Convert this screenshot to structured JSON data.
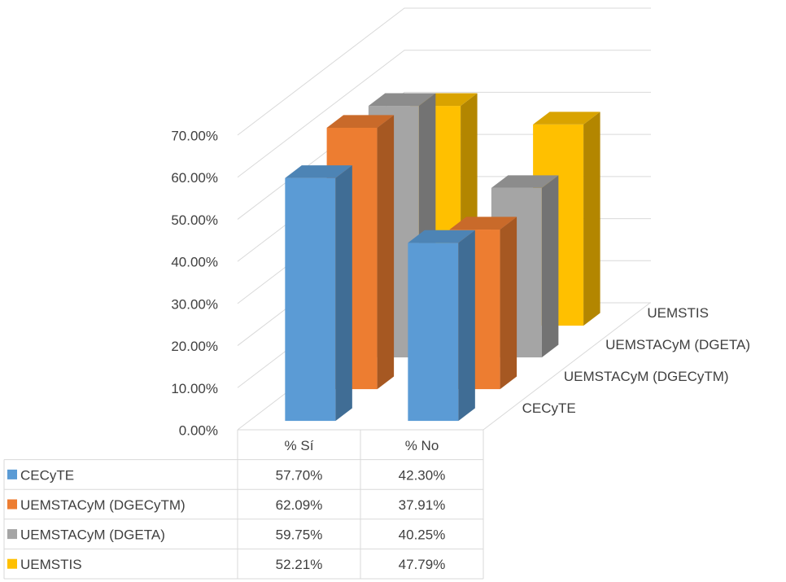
{
  "chart_data": {
    "type": "bar3d",
    "categories": [
      "% Sí",
      "% No"
    ],
    "series": [
      {
        "name": "CECyTE",
        "color": "#5b9bd5",
        "values": [
          57.7,
          42.3
        ],
        "value_labels": [
          "57.70%",
          "42.30%"
        ]
      },
      {
        "name": "UEMSTACyM (DGECyTM)",
        "color": "#ed7d31",
        "values": [
          62.09,
          37.91
        ],
        "value_labels": [
          "62.09%",
          "37.91%"
        ]
      },
      {
        "name": "UEMSTACyM (DGETA)",
        "color": "#a5a5a5",
        "values": [
          59.75,
          40.25
        ],
        "value_labels": [
          "59.75%",
          "40.25%"
        ]
      },
      {
        "name": "UEMSTIS",
        "color": "#ffc000",
        "values": [
          52.21,
          47.79
        ],
        "value_labels": [
          "52.21%",
          "47.79%"
        ]
      }
    ],
    "ylim": [
      0,
      70
    ],
    "yticks": [
      {
        "value": 0,
        "label": "0.00%"
      },
      {
        "value": 10,
        "label": "10.00%"
      },
      {
        "value": 20,
        "label": "20.00%"
      },
      {
        "value": 30,
        "label": "30.00%"
      },
      {
        "value": 40,
        "label": "40.00%"
      },
      {
        "value": 50,
        "label": "50.00%"
      },
      {
        "value": 60,
        "label": "60.00%"
      },
      {
        "value": 70,
        "label": "70.00%"
      }
    ],
    "grid": true
  }
}
